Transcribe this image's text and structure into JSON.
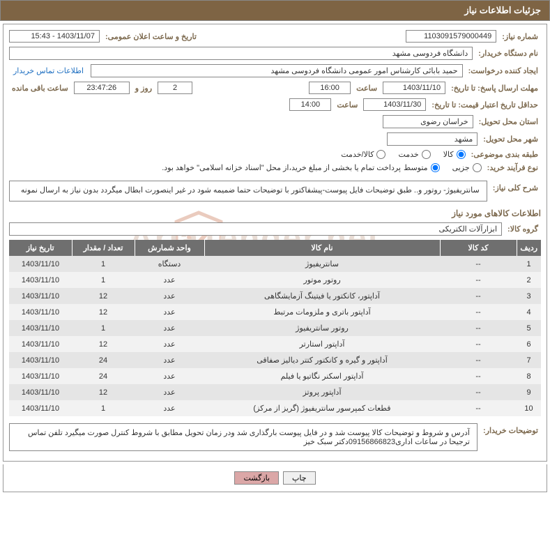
{
  "header": {
    "title": "جزئیات اطلاعات نیاز"
  },
  "labels": {
    "need_number": "شماره نیاز:",
    "announce_datetime": "تاریخ و ساعت اعلان عمومی:",
    "buyer_device": "نام دستگاه خریدار:",
    "requester": "ایجاد کننده درخواست:",
    "contact_link": "اطلاعات تماس خریدار",
    "deadline_resp": "مهلت ارسال پاسخ: تا تاریخ:",
    "hour": "ساعت",
    "day_and": "روز و",
    "remaining": "ساعت باقی مانده",
    "min_valid": "حداقل تاریخ اعتبار قیمت: تا تاریخ:",
    "deliver_province": "استان محل تحویل:",
    "deliver_city": "شهر محل تحویل:",
    "category": "طبقه بندی موضوعی:",
    "purchase_type": "نوع فرآیند خرید:",
    "general_desc": "شرح کلی نیاز:",
    "goods_info": "اطلاعات کالاهای مورد نیاز",
    "goods_group": "گروه کالا:",
    "buyer_notes": "توضیحات خریدار:"
  },
  "values": {
    "need_number": "1103091579000449",
    "announce_datetime": "1403/11/07 - 15:43",
    "buyer_device": "دانشگاه فردوسی مشهد",
    "requester": "حمید بابائی کارشناس امور عمومی دانشگاه فردوسی مشهد",
    "deadline_date": "1403/11/10",
    "deadline_hour": "16:00",
    "days_remaining": "2",
    "time_remaining": "23:47:26",
    "valid_date": "1403/11/30",
    "valid_hour": "14:00",
    "province": "خراسان رضوی",
    "city": "مشهد",
    "general_desc": "سانتریفیوژ- روتور و.. طبق توضیحات فایل پیوست-پیشفاکتور با توضیحات حتما ضمیمه شود در غیر اینصورت ابطال میگردد بدون نیاز به ارسال نمونه",
    "goods_group": "ابزارآلات الکتریکی",
    "buyer_notes": "آدرس و شروط  و توضیحات کالا پیوست شد و در فایل پیوست بارگذاری شد ودر زمان تحویل مطابق با شروط کنترل صورت میگیرد تلفن تماس  ترجیحا در ساعات اداری09156866823دکتر سبک خیز",
    "payment_note": "پرداخت تمام یا بخشی از مبلغ خرید،از محل \"اسناد خزانه اسلامی\" خواهد بود."
  },
  "radios": {
    "category": [
      {
        "label": "کالا",
        "checked": true
      },
      {
        "label": "خدمت",
        "checked": false
      },
      {
        "label": "کالا/خدمت",
        "checked": false
      }
    ],
    "purchase_type": [
      {
        "label": "جزیی",
        "checked": false
      },
      {
        "label": "متوسط",
        "checked": true
      }
    ]
  },
  "table": {
    "headers": {
      "row": "ردیف",
      "code": "کد کالا",
      "name": "نام کالا",
      "unit": "واحد شمارش",
      "qty": "تعداد / مقدار",
      "date": "تاریخ نیاز"
    },
    "rows": [
      {
        "n": "1",
        "code": "--",
        "name": "سانتریفیوژ",
        "unit": "دستگاه",
        "qty": "1",
        "date": "1403/11/10"
      },
      {
        "n": "2",
        "code": "--",
        "name": "روتور موتور",
        "unit": "عدد",
        "qty": "1",
        "date": "1403/11/10"
      },
      {
        "n": "3",
        "code": "--",
        "name": "آداپتور، کانکتور یا فیتینگ آزمایشگاهی",
        "unit": "عدد",
        "qty": "12",
        "date": "1403/11/10"
      },
      {
        "n": "4",
        "code": "--",
        "name": "آداپتور باتری و ملزومات مرتبط",
        "unit": "عدد",
        "qty": "12",
        "date": "1403/11/10"
      },
      {
        "n": "5",
        "code": "--",
        "name": "روتور سانتریفیوژ",
        "unit": "عدد",
        "qty": "1",
        "date": "1403/11/10"
      },
      {
        "n": "6",
        "code": "--",
        "name": "آداپتور استارتر",
        "unit": "عدد",
        "qty": "12",
        "date": "1403/11/10"
      },
      {
        "n": "7",
        "code": "--",
        "name": "آداپتور و گیره و کانکتور کتتر دیالیز صفاقی",
        "unit": "عدد",
        "qty": "24",
        "date": "1403/11/10"
      },
      {
        "n": "8",
        "code": "--",
        "name": "آداپتور اسکنر نگاتیو یا فیلم",
        "unit": "عدد",
        "qty": "24",
        "date": "1403/11/10"
      },
      {
        "n": "9",
        "code": "--",
        "name": "آداپتور پروتز",
        "unit": "عدد",
        "qty": "12",
        "date": "1403/11/10"
      },
      {
        "n": "10",
        "code": "--",
        "name": "قطعات کمپرسور سانتریفیوژ (گریز از مرکز)",
        "unit": "عدد",
        "qty": "1",
        "date": "1403/11/10"
      }
    ]
  },
  "buttons": {
    "print": "چاپ",
    "back": "بازگشت"
  },
  "watermark": {
    "text": "AriaTender.net"
  }
}
